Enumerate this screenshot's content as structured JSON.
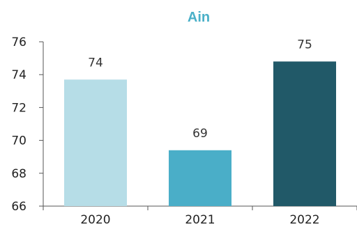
{
  "chart_data": {
    "type": "bar",
    "title": "Ain",
    "title_color": "#4ab0c8",
    "categories": [
      "2020",
      "2021",
      "2022"
    ],
    "values": [
      73.7,
      69.4,
      74.8
    ],
    "data_labels": [
      "74",
      "69",
      "75"
    ],
    "bar_colors": [
      "#b6dde7",
      "#4aaec8",
      "#215968"
    ],
    "ylim": [
      66,
      76
    ],
    "yticks": [
      "66",
      "68",
      "70",
      "72",
      "74",
      "76"
    ],
    "xlabel": "",
    "ylabel": "",
    "grid": false,
    "legend": "none"
  }
}
